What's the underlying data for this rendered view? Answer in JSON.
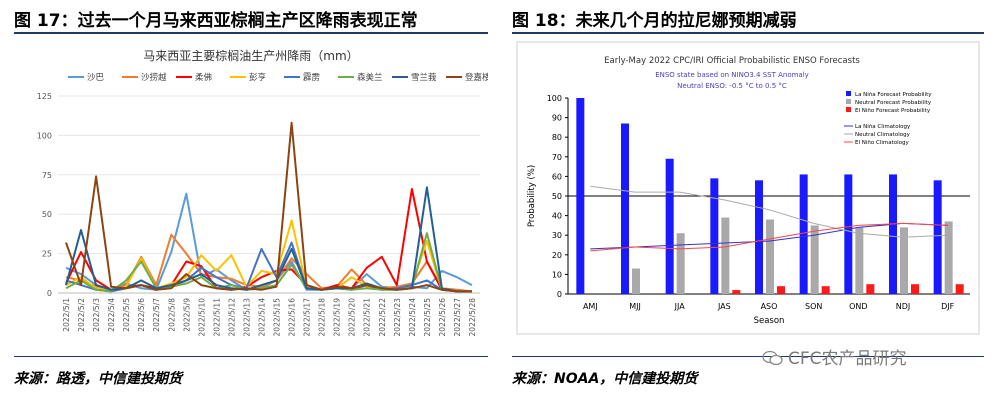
{
  "left": {
    "figure_title": "图 17：过去一个月马来西亚棕榈主产区降雨表现正常",
    "source": "来源：路透，中信建投期货"
  },
  "right": {
    "figure_title": "图 18：未来几个月的拉尼娜预期减弱",
    "source": "来源：NOAA，中信建投期货"
  },
  "watermark": "CFC农产品研究",
  "colors": {
    "rule": "#1f3a68",
    "enso_la_nina": "#1a1aff",
    "enso_neutral": "#a9a9a9",
    "enso_el_nino": "#ff1a1a"
  },
  "chart_data": [
    {
      "type": "line",
      "title": "马来西亚主要棕榈油生产州降雨（mm）",
      "legend_position": "top",
      "ylim": [
        0,
        125
      ],
      "yticks": [
        0,
        25,
        50,
        75,
        100,
        125
      ],
      "x": [
        "2022/5/1",
        "2022/5/2",
        "2022/5/3",
        "2022/5/4",
        "2022/5/5",
        "2022/5/6",
        "2022/5/7",
        "2022/5/8",
        "2022/5/9",
        "2022/5/10",
        "2022/5/11",
        "2022/5/12",
        "2022/5/13",
        "2022/5/14",
        "2022/5/15",
        "2022/5/16",
        "2022/5/17",
        "2022/5/18",
        "2022/5/19",
        "2022/5/20",
        "2022/5/21",
        "2022/5/22",
        "2022/5/23",
        "2022/5/24",
        "2022/5/25",
        "2022/5/26",
        "2022/5/27",
        "2022/5/28"
      ],
      "series": [
        {
          "name": "沙巴",
          "color": "#5b9bd5",
          "values": [
            16,
            12,
            5,
            2,
            6,
            3,
            2,
            26,
            63,
            10,
            15,
            8,
            2,
            3,
            8,
            20,
            2,
            2,
            4,
            3,
            12,
            4,
            3,
            4,
            3,
            14,
            10,
            5
          ]
        },
        {
          "name": "沙捞越",
          "color": "#ed7d31",
          "values": [
            10,
            8,
            4,
            2,
            5,
            23,
            5,
            37,
            25,
            12,
            10,
            9,
            5,
            4,
            8,
            22,
            12,
            3,
            4,
            15,
            5,
            3,
            4,
            6,
            20,
            3,
            2,
            1
          ]
        },
        {
          "name": "柔佛",
          "color": "#ff0000",
          "values": [
            6,
            26,
            8,
            2,
            4,
            5,
            3,
            5,
            20,
            17,
            3,
            2,
            4,
            10,
            14,
            15,
            5,
            2,
            5,
            3,
            16,
            23,
            5,
            66,
            20,
            2,
            1,
            1
          ]
        },
        {
          "name": "彭亨",
          "color": "#ffc000",
          "values": [
            5,
            10,
            3,
            2,
            4,
            22,
            3,
            6,
            10,
            24,
            14,
            24,
            4,
            14,
            12,
            46,
            4,
            2,
            3,
            10,
            4,
            3,
            2,
            5,
            33,
            2,
            1,
            1
          ]
        },
        {
          "name": "霹雳",
          "color": "#4472c4",
          "values": [
            8,
            5,
            2,
            1,
            3,
            5,
            2,
            4,
            8,
            16,
            10,
            5,
            3,
            28,
            10,
            32,
            3,
            2,
            3,
            2,
            5,
            2,
            3,
            5,
            8,
            2,
            1,
            1
          ]
        },
        {
          "name": "森美兰",
          "color": "#70ad47",
          "values": [
            3,
            8,
            2,
            1,
            8,
            20,
            3,
            4,
            6,
            10,
            3,
            5,
            2,
            3,
            5,
            18,
            3,
            2,
            3,
            2,
            3,
            2,
            2,
            3,
            38,
            2,
            1,
            1
          ]
        },
        {
          "name": "雪兰莪",
          "color": "#255e91",
          "values": [
            5,
            40,
            5,
            2,
            3,
            8,
            3,
            5,
            8,
            12,
            5,
            3,
            2,
            5,
            8,
            28,
            3,
            2,
            3,
            3,
            6,
            3,
            2,
            3,
            67,
            3,
            1,
            1
          ]
        },
        {
          "name": "登嘉楼",
          "color": "#8b4513",
          "values": [
            32,
            5,
            74,
            4,
            3,
            5,
            2,
            3,
            12,
            5,
            3,
            2,
            3,
            2,
            4,
            108,
            5,
            2,
            4,
            3,
            5,
            3,
            2,
            3,
            5,
            2,
            1,
            1
          ]
        }
      ]
    },
    {
      "type": "bar",
      "title": "Early-May 2022 CPC/IRI Official Probabilistic ENSO Forecasts",
      "subtitle_1": "ENSO state based on NINO3.4 SST Anomaly",
      "subtitle_2": "Neutral ENSO: -0.5 °C to 0.5 °C",
      "xlabel": "Season",
      "ylabel": "Probability (%)",
      "ylim": [
        0,
        100
      ],
      "yticks": [
        0,
        10,
        20,
        30,
        40,
        50,
        60,
        70,
        80,
        90,
        100
      ],
      "reference_line": 50,
      "categories": [
        "AMJ",
        "MJJ",
        "JJA",
        "JAS",
        "ASO",
        "SON",
        "OND",
        "NDJ",
        "DJF"
      ],
      "series": [
        {
          "name": "La Niña Forecast Probability",
          "values": [
            100,
            87,
            69,
            59,
            58,
            61,
            61,
            61,
            58
          ]
        },
        {
          "name": "Neutral Forecast Probability",
          "values": [
            0,
            13,
            31,
            39,
            38,
            35,
            34,
            34,
            37
          ]
        },
        {
          "name": "El Niño Forecast Probability",
          "values": [
            0,
            0,
            0,
            2,
            4,
            4,
            5,
            5,
            5
          ]
        }
      ],
      "climatology": [
        {
          "name": "La Niña Climatology",
          "color": "#3333cc",
          "values": [
            23,
            24,
            25,
            26,
            27,
            30,
            34,
            36,
            35
          ]
        },
        {
          "name": "Neutral Climatology",
          "color": "#aaaaaa",
          "values": [
            55,
            52,
            52,
            48,
            43,
            36,
            31,
            29,
            30
          ]
        },
        {
          "name": "El Niño Climatology",
          "color": "#ff4444",
          "values": [
            22,
            24,
            23,
            24,
            28,
            32,
            35,
            36,
            35
          ]
        }
      ],
      "legend_position": "top-right"
    }
  ]
}
